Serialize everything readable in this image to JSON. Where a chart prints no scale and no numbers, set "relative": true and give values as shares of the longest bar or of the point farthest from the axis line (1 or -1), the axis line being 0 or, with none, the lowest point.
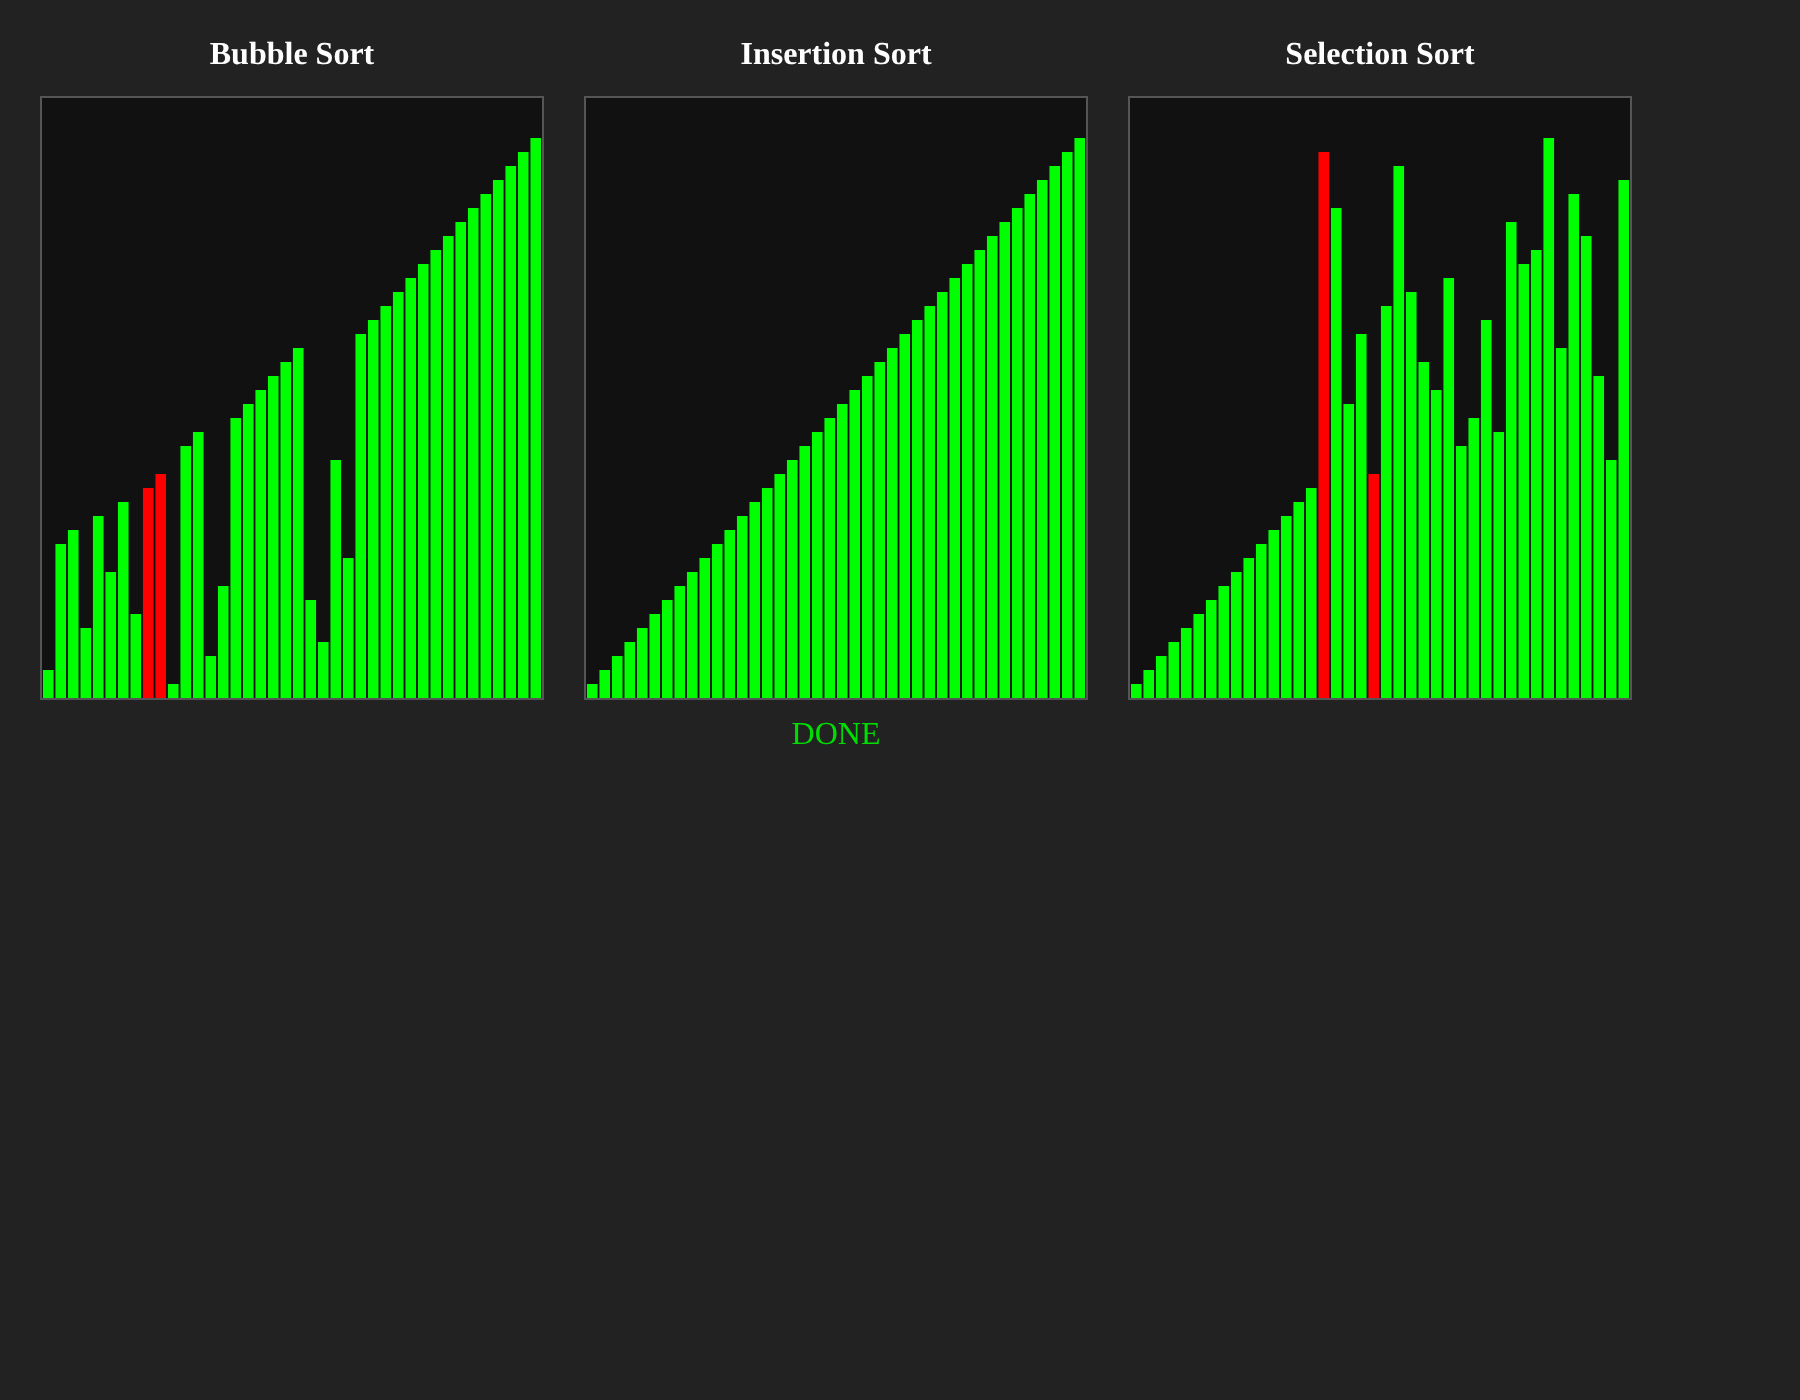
{
  "chart_data": [
    {
      "type": "bar",
      "title": "Bubble Sort",
      "relative": true,
      "categories": [
        null,
        null,
        null,
        null,
        null,
        null,
        null,
        null,
        null,
        null,
        null,
        null,
        null,
        null,
        null,
        null,
        null,
        null,
        null,
        null,
        null,
        null,
        null,
        null,
        null,
        null,
        null,
        null,
        null,
        null,
        null,
        null,
        null,
        null,
        null,
        null,
        null,
        null,
        null,
        null
      ],
      "values": [
        0.05,
        0.275,
        0.3,
        0.125,
        0.325,
        0.225,
        0.35,
        0.15,
        0.375,
        0.4,
        0.025,
        0.45,
        0.475,
        0.075,
        0.2,
        0.5,
        0.525,
        0.55,
        0.575,
        0.6,
        0.625,
        0.175,
        0.1,
        0.425,
        0.25,
        0.65,
        0.675,
        0.7,
        0.725,
        0.75,
        0.775,
        0.8,
        0.825,
        0.85,
        0.875,
        0.9,
        0.925,
        0.95,
        0.975,
        1
      ],
      "colors": [
        "#00ff00",
        "#00ff00",
        "#00ff00",
        "#00ff00",
        "#00ff00",
        "#00ff00",
        "#00ff00",
        "#00ff00",
        "#ff0000",
        "#ff0000",
        "#00ff00",
        "#00ff00",
        "#00ff00",
        "#00ff00",
        "#00ff00",
        "#00ff00",
        "#00ff00",
        "#00ff00",
        "#00ff00",
        "#00ff00",
        "#00ff00",
        "#00ff00",
        "#00ff00",
        "#00ff00",
        "#00ff00",
        "#00ff00",
        "#00ff00",
        "#00ff00",
        "#00ff00",
        "#00ff00",
        "#00ff00",
        "#00ff00",
        "#00ff00",
        "#00ff00",
        "#00ff00",
        "#00ff00",
        "#00ff00",
        "#00ff00",
        "#00ff00",
        "#00ff00"
      ]
    },
    {
      "type": "bar",
      "title": "Insertion Sort",
      "relative": true,
      "categories": [
        null,
        null,
        null,
        null,
        null,
        null,
        null,
        null,
        null,
        null,
        null,
        null,
        null,
        null,
        null,
        null,
        null,
        null,
        null,
        null,
        null,
        null,
        null,
        null,
        null,
        null,
        null,
        null,
        null,
        null,
        null,
        null,
        null,
        null,
        null,
        null,
        null,
        null,
        null,
        null
      ],
      "values": [
        0.025,
        0.05,
        0.075,
        0.1,
        0.125,
        0.15,
        0.175,
        0.2,
        0.225,
        0.25,
        0.275,
        0.3,
        0.325,
        0.35,
        0.375,
        0.4,
        0.425,
        0.45,
        0.475,
        0.5,
        0.525,
        0.55,
        0.575,
        0.6,
        0.625,
        0.65,
        0.675,
        0.7,
        0.725,
        0.75,
        0.775,
        0.8,
        0.825,
        0.85,
        0.875,
        0.9,
        0.925,
        0.95,
        0.975,
        1
      ],
      "colors": [
        "#00ff00",
        "#00ff00",
        "#00ff00",
        "#00ff00",
        "#00ff00",
        "#00ff00",
        "#00ff00",
        "#00ff00",
        "#00ff00",
        "#00ff00",
        "#00ff00",
        "#00ff00",
        "#00ff00",
        "#00ff00",
        "#00ff00",
        "#00ff00",
        "#00ff00",
        "#00ff00",
        "#00ff00",
        "#00ff00",
        "#00ff00",
        "#00ff00",
        "#00ff00",
        "#00ff00",
        "#00ff00",
        "#00ff00",
        "#00ff00",
        "#00ff00",
        "#00ff00",
        "#00ff00",
        "#00ff00",
        "#00ff00",
        "#00ff00",
        "#00ff00",
        "#00ff00",
        "#00ff00",
        "#00ff00",
        "#00ff00",
        "#00ff00",
        "#00ff00"
      ],
      "annotations": [
        "DONE"
      ]
    },
    {
      "type": "bar",
      "title": "Selection Sort",
      "relative": true,
      "categories": [
        null,
        null,
        null,
        null,
        null,
        null,
        null,
        null,
        null,
        null,
        null,
        null,
        null,
        null,
        null,
        null,
        null,
        null,
        null,
        null,
        null,
        null,
        null,
        null,
        null,
        null,
        null,
        null,
        null,
        null,
        null,
        null,
        null,
        null,
        null,
        null,
        null,
        null,
        null,
        null
      ],
      "values": [
        0.025,
        0.05,
        0.075,
        0.1,
        0.125,
        0.15,
        0.175,
        0.2,
        0.225,
        0.25,
        0.275,
        0.3,
        0.325,
        0.35,
        0.375,
        0.975,
        0.875,
        0.525,
        0.65,
        0.4,
        0.7,
        0.95,
        0.725,
        0.6,
        0.55,
        0.75,
        0.45,
        0.5,
        0.675,
        0.475,
        0.85,
        0.775,
        0.8,
        1,
        0.625,
        0.9,
        0.825,
        0.575,
        0.425,
        0.925
      ],
      "colors": [
        "#00ff00",
        "#00ff00",
        "#00ff00",
        "#00ff00",
        "#00ff00",
        "#00ff00",
        "#00ff00",
        "#00ff00",
        "#00ff00",
        "#00ff00",
        "#00ff00",
        "#00ff00",
        "#00ff00",
        "#00ff00",
        "#00ff00",
        "#ff0000",
        "#00ff00",
        "#00ff00",
        "#00ff00",
        "#ff0000",
        "#00ff00",
        "#00ff00",
        "#00ff00",
        "#00ff00",
        "#00ff00",
        "#00ff00",
        "#00ff00",
        "#00ff00",
        "#00ff00",
        "#00ff00",
        "#00ff00",
        "#00ff00",
        "#00ff00",
        "#00ff00",
        "#00ff00",
        "#00ff00",
        "#00ff00",
        "#00ff00",
        "#00ff00",
        "#00ff00"
      ]
    }
  ]
}
